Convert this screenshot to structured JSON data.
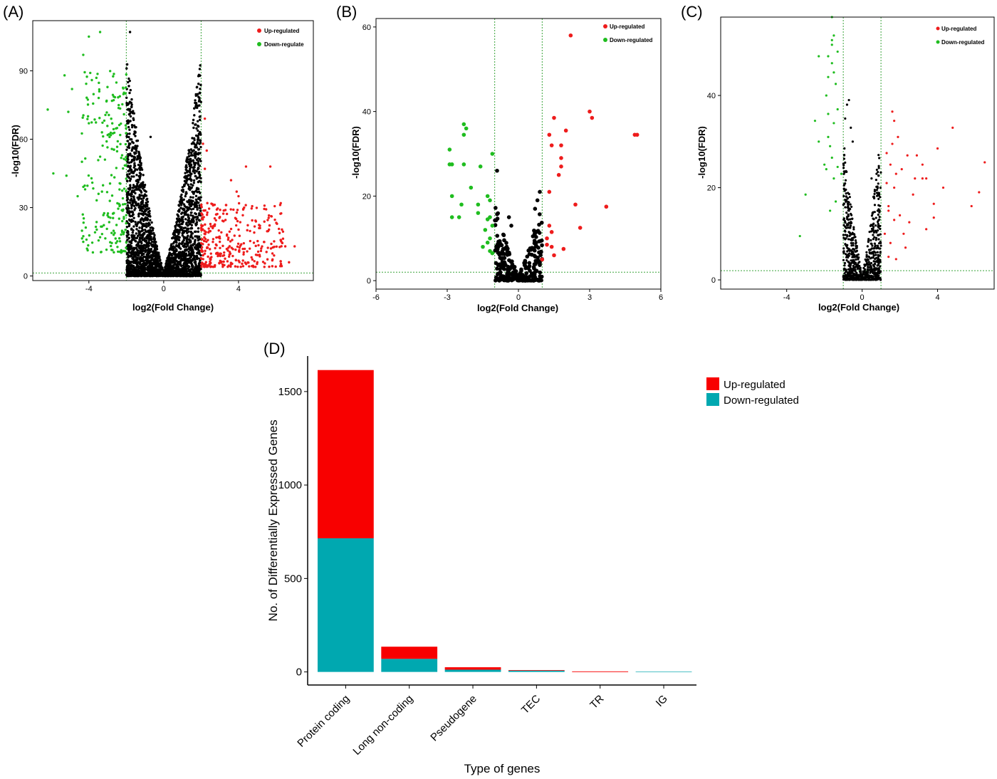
{
  "colors": {
    "up": "#ee1c1c",
    "down": "#1fbd1f",
    "not_significant": "#000000",
    "threshold_line": "#3aa33a",
    "bar_up": "#f80000",
    "bar_down": "#00a8b0"
  },
  "chart_data": [
    {
      "panel": "(A)",
      "type": "scatter",
      "xlabel": "log2(Fold Change)",
      "ylabel": "-log10(FDR)",
      "xlim": [
        -7.0,
        8.0
      ],
      "ylim": [
        -2,
        112
      ],
      "xticks": [
        -4,
        0,
        4
      ],
      "yticks": [
        0,
        30,
        60,
        90
      ],
      "thresholds": {
        "x": [
          -2,
          2
        ],
        "y": 1.3
      },
      "legend": [
        "Up-regulated",
        "Down-regulate"
      ],
      "legend_position": "top-right",
      "grid": false,
      "series": [
        {
          "name": "Up-regulated",
          "points": [
            [
              2.2,
              69
            ],
            [
              2.1,
              58
            ],
            [
              2.3,
              55
            ],
            [
              2.2,
              47
            ],
            [
              4.4,
              48
            ],
            [
              5.7,
              48
            ],
            [
              3.6,
              42
            ],
            [
              3.9,
              37
            ],
            [
              4.0,
              35
            ],
            [
              4.3,
              30
            ],
            [
              3.2,
              24
            ],
            [
              2.8,
              27
            ],
            [
              5.1,
              21
            ],
            [
              6.5,
              13
            ],
            [
              7.0,
              13
            ],
            [
              3.0,
              15
            ],
            [
              4.6,
              12
            ],
            [
              5.2,
              11
            ],
            [
              5.9,
              9
            ],
            [
              6.7,
              6
            ]
          ],
          "note": "plus a dense cloud of red points roughly x 2.0–6.5, y 5–30"
        },
        {
          "name": "Down-regulate",
          "points": [
            [
              -3.4,
              107
            ],
            [
              -4.0,
              105
            ],
            [
              -4.3,
              97
            ],
            [
              -5.3,
              88
            ],
            [
              -4.9,
              82
            ],
            [
              -6.2,
              73
            ],
            [
              -5.1,
              72
            ],
            [
              -4.0,
              67
            ],
            [
              -3.3,
              63
            ],
            [
              -5.9,
              45
            ],
            [
              -5.2,
              44
            ],
            [
              -4.2,
              38
            ],
            [
              -4.6,
              35
            ],
            [
              -3.3,
              37
            ],
            [
              -4.1,
              12
            ],
            [
              -4.3,
              15
            ],
            [
              -3.4,
              17
            ]
          ],
          "note": "plus a dense cloud of green points roughly x -2.0 to -4.5, y 10–90"
        },
        {
          "name": "",
          "points": [
            [
              -1.8,
              107
            ],
            [
              -0.7,
              61
            ],
            [
              1.6,
              65
            ],
            [
              -1.7,
              55
            ],
            [
              1.6,
              55
            ]
          ],
          "note": "black V-shaped cloud of non-significant genes, x -2 to 2, y 0–60"
        }
      ]
    },
    {
      "panel": "(B)",
      "type": "scatter",
      "xlabel": "log2(Fold Change)",
      "ylabel": "-log10(FDR)",
      "xlim": [
        -6,
        6
      ],
      "ylim": [
        -2,
        62
      ],
      "xticks": [
        -6,
        -3,
        0,
        3,
        6
      ],
      "yticks": [
        0,
        20,
        40,
        60
      ],
      "thresholds": {
        "x": [
          -1,
          1
        ],
        "y": 2.0
      },
      "legend": [
        "Up-regulated",
        "Down-regulated"
      ],
      "legend_position": "top-right",
      "grid": false,
      "series": [
        {
          "name": "Up-regulated",
          "points": [
            [
              2.2,
              58
            ],
            [
              3.0,
              40
            ],
            [
              3.1,
              38.5
            ],
            [
              1.5,
              38.5
            ],
            [
              1.3,
              34.5
            ],
            [
              2.0,
              35.5
            ],
            [
              4.9,
              34.5
            ],
            [
              5.0,
              34.5
            ],
            [
              1.4,
              32
            ],
            [
              1.8,
              32
            ],
            [
              1.8,
              29
            ],
            [
              1.8,
              27
            ],
            [
              1.7,
              25
            ],
            [
              1.3,
              21
            ],
            [
              2.4,
              18
            ],
            [
              3.7,
              17.5
            ],
            [
              2.6,
              12.5
            ],
            [
              1.3,
              13
            ],
            [
              1.4,
              11.5
            ],
            [
              1.2,
              10
            ],
            [
              1.2,
              8.5
            ],
            [
              1.4,
              8
            ],
            [
              1.9,
              7.5
            ],
            [
              1.5,
              6
            ],
            [
              1.0,
              5
            ]
          ],
          "note": ""
        },
        {
          "name": "Down-regulated",
          "points": [
            [
              -2.3,
              37
            ],
            [
              -2.2,
              36
            ],
            [
              -2.3,
              34.5
            ],
            [
              -2.9,
              31
            ],
            [
              -2.8,
              27.5
            ],
            [
              -2.9,
              27.5
            ],
            [
              -2.3,
              27.5
            ],
            [
              -1.1,
              30
            ],
            [
              -1.6,
              27
            ],
            [
              -2.0,
              22
            ],
            [
              -1.3,
              20
            ],
            [
              -2.8,
              20
            ],
            [
              -1.2,
              19
            ],
            [
              -2.4,
              18
            ],
            [
              -1.7,
              18
            ],
            [
              -2.5,
              15
            ],
            [
              -1.7,
              16
            ],
            [
              -2.8,
              15
            ],
            [
              -1.2,
              15
            ],
            [
              -1.3,
              14.5
            ],
            [
              -1.1,
              13
            ],
            [
              -1.4,
              12
            ],
            [
              -1.2,
              10
            ],
            [
              -1.3,
              9
            ],
            [
              -1.5,
              8
            ],
            [
              -1.2,
              7
            ],
            [
              -1.1,
              6.5
            ],
            [
              -1.1,
              6.5
            ]
          ],
          "note": ""
        },
        {
          "name": "",
          "points": [
            [
              -0.9,
              26
            ],
            [
              0.9,
              21
            ],
            [
              0.8,
              19
            ],
            [
              0.7,
              17
            ],
            [
              -0.4,
              15
            ],
            [
              -0.3,
              13
            ]
          ],
          "note": "black V-shaped cloud of non-significant genes, x -1 to 1, y 0–20"
        }
      ]
    },
    {
      "panel": "(C)",
      "type": "scatter",
      "xlabel": "log2(Fold Change)",
      "ylabel": "-log10(FDR)",
      "xlim": [
        -7.5,
        7.0
      ],
      "ylim": [
        -2,
        57
      ],
      "xticks": [
        -4,
        0,
        4
      ],
      "yticks": [
        0,
        20,
        40
      ],
      "thresholds": {
        "x": [
          -1,
          1
        ],
        "y": 2.0
      },
      "legend": [
        "Up-regulated",
        "Down-regulated"
      ],
      "legend_position": "top-right",
      "grid": false,
      "series": [
        {
          "name": "Up-regulated",
          "points": [
            [
              1.6,
              36.5
            ],
            [
              1.7,
              34.5
            ],
            [
              4.8,
              33
            ],
            [
              1.9,
              31
            ],
            [
              1.6,
              29.5
            ],
            [
              4.0,
              28.5
            ],
            [
              1.3,
              27.5
            ],
            [
              2.4,
              27
            ],
            [
              2.9,
              27
            ],
            [
              6.5,
              25.5
            ],
            [
              3.2,
              25
            ],
            [
              1.5,
              25
            ],
            [
              2.1,
              24
            ],
            [
              1.8,
              23
            ],
            [
              2.8,
              22
            ],
            [
              1.3,
              21
            ],
            [
              3.2,
              22
            ],
            [
              3.4,
              22
            ],
            [
              1.7,
              20
            ],
            [
              4.3,
              20
            ],
            [
              6.2,
              19
            ],
            [
              2.7,
              18.5
            ],
            [
              3.8,
              16.5
            ],
            [
              1.4,
              16
            ],
            [
              5.8,
              16
            ],
            [
              1.4,
              15
            ],
            [
              2.0,
              14
            ],
            [
              3.8,
              13.5
            ],
            [
              1.7,
              13
            ],
            [
              2.5,
              12.5
            ],
            [
              3.4,
              11
            ],
            [
              1.2,
              10
            ],
            [
              2.2,
              10
            ],
            [
              1.5,
              8
            ],
            [
              2.3,
              7
            ],
            [
              1.4,
              5
            ],
            [
              1.8,
              4.5
            ]
          ],
          "note": ""
        },
        {
          "name": "Down-regulated",
          "points": [
            [
              -1.6,
              57
            ],
            [
              -1.5,
              53
            ],
            [
              -1.6,
              52
            ],
            [
              -1.6,
              51
            ],
            [
              -1.3,
              49.5
            ],
            [
              -2.3,
              48.5
            ],
            [
              -1.8,
              48.5
            ],
            [
              -1.6,
              47
            ],
            [
              -1.5,
              45
            ],
            [
              -1.8,
              44
            ],
            [
              -1.4,
              42.5
            ],
            [
              -1.9,
              40
            ],
            [
              -1.3,
              37
            ],
            [
              -1.8,
              36
            ],
            [
              -2.5,
              34.5
            ],
            [
              -1.5,
              34
            ],
            [
              -1.8,
              31
            ],
            [
              -2.3,
              30
            ],
            [
              -1.7,
              29
            ],
            [
              -1.6,
              26.5
            ],
            [
              -2.0,
              25
            ],
            [
              -1.3,
              24.5
            ],
            [
              -1.9,
              24
            ],
            [
              -1.1,
              23
            ],
            [
              -1.5,
              22
            ],
            [
              -3.0,
              18.5
            ],
            [
              -1.4,
              17
            ],
            [
              -1.7,
              15
            ],
            [
              -3.3,
              9.5
            ]
          ],
          "note": ""
        },
        {
          "name": "",
          "points": [
            [
              -0.7,
              39
            ],
            [
              -0.8,
              38
            ],
            [
              -0.9,
              35
            ],
            [
              -0.6,
              33
            ],
            [
              -0.5,
              30
            ],
            [
              0.5,
              22
            ],
            [
              0.6,
              18
            ]
          ],
          "note": "black V-shaped cloud of non-significant genes, x -1 to 1, y 0–35"
        }
      ]
    },
    {
      "panel": "(D)",
      "type": "bar",
      "stacked": true,
      "xlabel": "Type of genes",
      "ylabel": "No. of Differentially Expressed Genes",
      "categories": [
        "Protein coding",
        "Long non-coding",
        "Pseudogene",
        "TEC",
        "TR",
        "IG"
      ],
      "ylim": [
        -70,
        1690
      ],
      "yticks": [
        0,
        500,
        1000,
        1500
      ],
      "legend": [
        "Up-regulated",
        "Down-regulated"
      ],
      "legend_position": "right",
      "grid": false,
      "series": [
        {
          "name": "Down-regulated",
          "values": [
            715,
            70,
            12,
            7,
            0,
            2
          ]
        },
        {
          "name": "Up-regulated",
          "values": [
            900,
            65,
            13,
            3,
            3,
            0
          ]
        }
      ]
    }
  ]
}
